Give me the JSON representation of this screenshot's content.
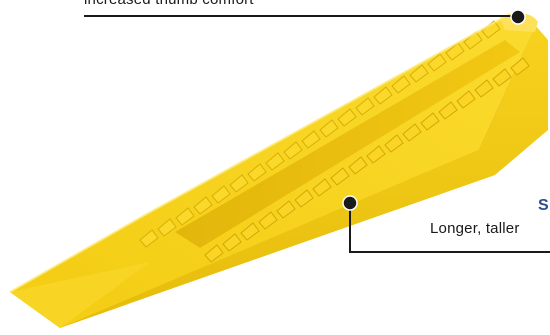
{
  "product": {
    "name_icon": "yellow-tile-leveling-wedge",
    "color": "#F6D21C",
    "shadow_color": "#D8AE0A",
    "highlight_color": "#FDE76A"
  },
  "callouts": {
    "top": {
      "text": "increased thumb comfort",
      "line_color": "#1a1a1a",
      "dot_color": "#1a1a1a"
    },
    "right": {
      "title": "S",
      "text": "Longer, taller",
      "title_color": "#2d4f8a",
      "line_color": "#1a1a1a",
      "dot_color": "#1a1a1a"
    }
  }
}
